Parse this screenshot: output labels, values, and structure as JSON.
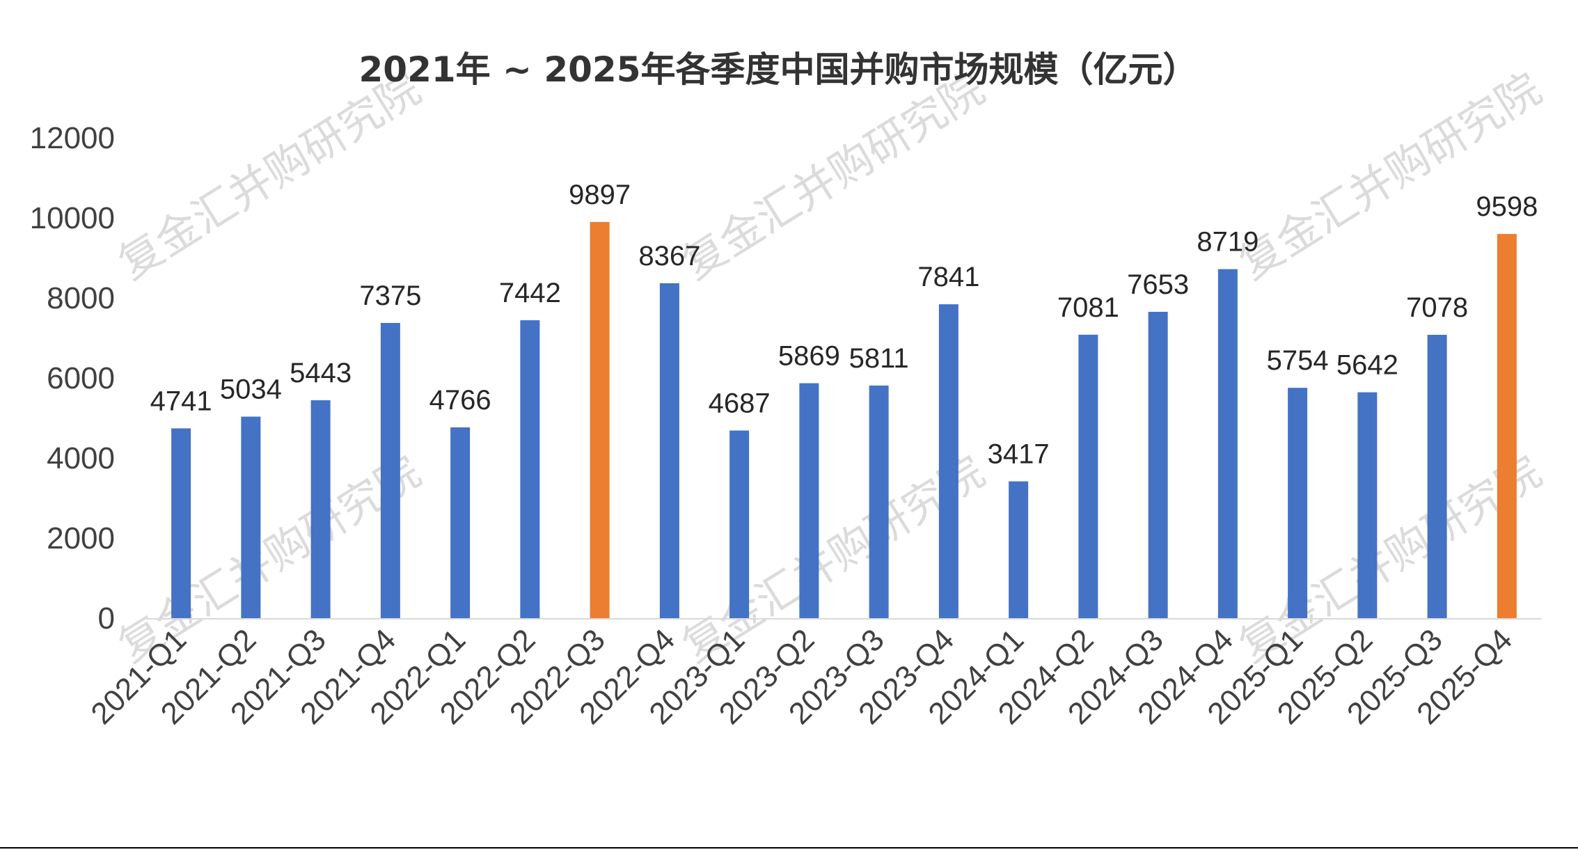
{
  "chart_data": {
    "type": "bar",
    "title": "2021年 ~ 2025年各季度中国并购市场规模（亿元）",
    "xlabel": "",
    "ylabel": "",
    "ylim": [
      0,
      12000
    ],
    "yticks": [
      0,
      2000,
      4000,
      6000,
      8000,
      10000,
      12000
    ],
    "grid": false,
    "legend": "none",
    "categories": [
      "2021-Q1",
      "2021-Q2",
      "2021-Q3",
      "2021-Q4",
      "2022-Q1",
      "2022-Q2",
      "2022-Q3",
      "2022-Q4",
      "2023-Q1",
      "2023-Q2",
      "2023-Q3",
      "2023-Q4",
      "2024-Q1",
      "2024-Q2",
      "2024-Q3",
      "2024-Q4",
      "2025-Q1",
      "2025-Q2",
      "2025-Q3",
      "2025-Q4"
    ],
    "values": [
      4741,
      5034,
      5443,
      7375,
      4766,
      7442,
      9897,
      8367,
      4687,
      5869,
      5811,
      7841,
      3417,
      7081,
      7653,
      8719,
      5754,
      5642,
      7078,
      9598
    ],
    "highlight_indices": [
      6,
      19
    ],
    "colors": {
      "bar": "#4472C4",
      "highlight": "#ED7D31",
      "axis": "#D9D9D9"
    },
    "watermark": "复金汇并购研究院"
  }
}
